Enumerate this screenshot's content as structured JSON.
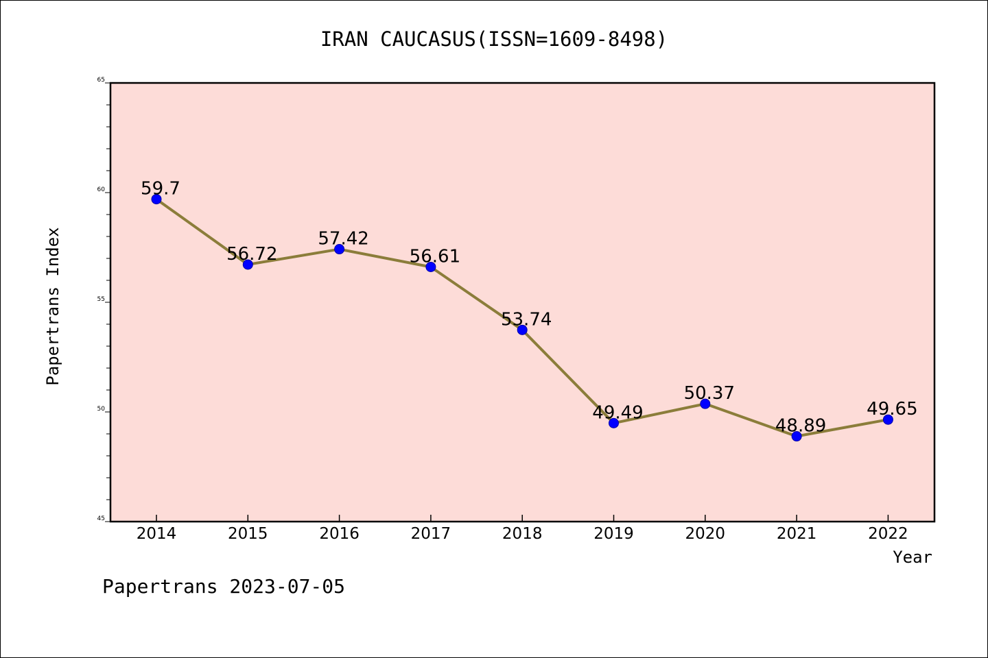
{
  "chart_data": {
    "type": "line",
    "title": "IRAN CAUCASUS(ISSN=1609-8498)",
    "xlabel": "Year",
    "ylabel": "Papertrans Index",
    "categories": [
      "2014",
      "2015",
      "2016",
      "2017",
      "2018",
      "2019",
      "2020",
      "2021",
      "2022"
    ],
    "series": [
      {
        "values": [
          59.7,
          56.72,
          57.42,
          56.61,
          53.74,
          49.49,
          50.37,
          48.89,
          49.65
        ],
        "data_labels": [
          "59.7",
          "56.72",
          "57.42",
          "56.61",
          "53.74",
          "49.49",
          "50.37",
          "48.89",
          "49.65"
        ]
      }
    ],
    "ylim": [
      45,
      65
    ],
    "yticks": [
      "45",
      "50",
      "55",
      "60",
      "65"
    ],
    "y_minor_step": 1,
    "grid": false,
    "legend": "none"
  },
  "footer": {
    "text": "Papertrans 2023-07-05"
  },
  "colors": {
    "plot_background": "#fddcd8",
    "line": "#8b7d3a",
    "marker": "#0000ff",
    "axis": "#000000"
  }
}
